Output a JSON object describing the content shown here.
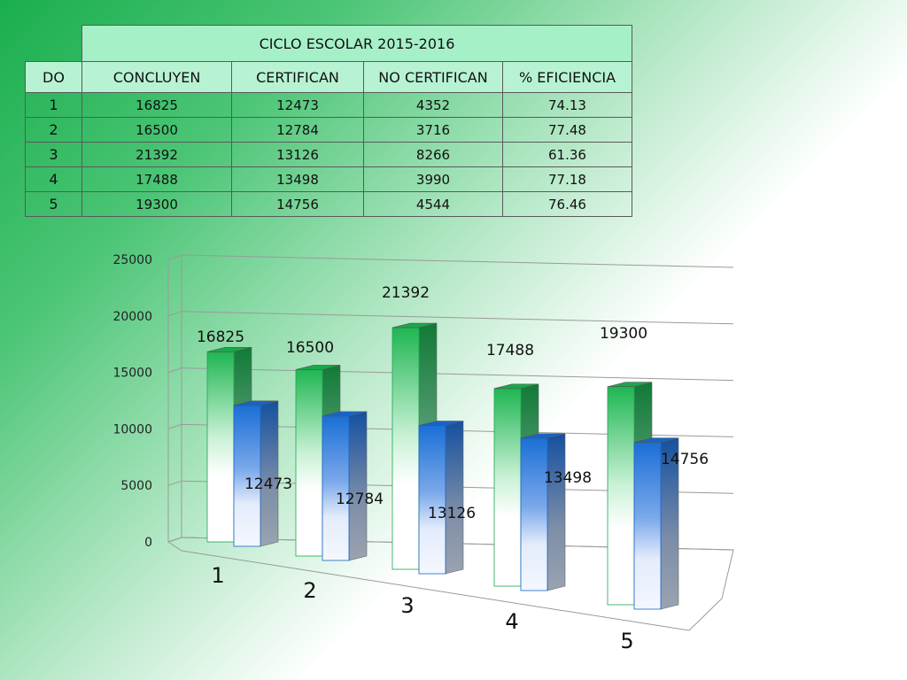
{
  "table": {
    "title": "CICLO ESCOLAR 2015-2016",
    "headers": [
      "DO",
      "CONCLUYEN",
      "CERTIFICAN",
      "NO CERTIFICAN",
      "% EFICIENCIA"
    ],
    "rows": [
      [
        "1",
        "16825",
        "12473",
        "4352",
        "74.13"
      ],
      [
        "2",
        "16500",
        "12784",
        "3716",
        "77.48"
      ],
      [
        "3",
        "21392",
        "13126",
        "8266",
        "61.36"
      ],
      [
        "4",
        "17488",
        "13498",
        "3990",
        "77.18"
      ],
      [
        "5",
        "19300",
        "14756",
        "4544",
        "76.46"
      ]
    ]
  },
  "chart_data": {
    "type": "bar",
    "categories": [
      "1",
      "2",
      "3",
      "4",
      "5"
    ],
    "series": [
      {
        "values": [
          16825,
          16500,
          21392,
          17488,
          19300
        ],
        "color": "#22b455"
      },
      {
        "values": [
          12473,
          12784,
          13126,
          13498,
          14756
        ],
        "color": "#1c6fd1"
      }
    ],
    "yticks": [
      "0",
      "5000",
      "10000",
      "15000",
      "20000",
      "25000"
    ],
    "ylim": [
      0,
      25000
    ],
    "grid": true,
    "legend": "none",
    "style": "3d-clustered-column"
  }
}
